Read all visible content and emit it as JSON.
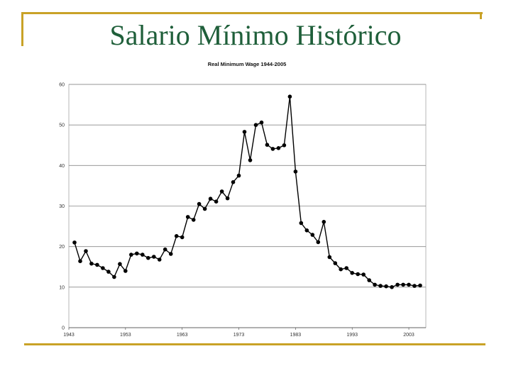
{
  "slide": {
    "title": "Salario Mínimo Histórico",
    "accent_color": "#c9a227",
    "title_color": "#1f5f3a"
  },
  "chart_data": {
    "type": "line",
    "title": "Real Minimum Wage 1944-2005",
    "xlabel": "",
    "ylabel": "",
    "xlim": [
      1943,
      2006
    ],
    "ylim": [
      0,
      60
    ],
    "x_ticks": [
      1943,
      1953,
      1963,
      1973,
      1983,
      1993,
      2003
    ],
    "y_ticks": [
      0,
      10,
      20,
      30,
      40,
      50,
      60
    ],
    "grid": "horizontal major lines",
    "legend": "none",
    "marker": "filled circle",
    "line_color": "#000000",
    "series": [
      {
        "x": [
          1944,
          1945,
          1946,
          1947,
          1948,
          1949,
          1950,
          1951,
          1952,
          1953,
          1954,
          1955,
          1956,
          1957,
          1958,
          1959,
          1960,
          1961,
          1962,
          1963,
          1964,
          1965,
          1966,
          1967,
          1968,
          1969,
          1970,
          1971,
          1972,
          1973,
          1974,
          1975,
          1976,
          1977,
          1978,
          1979,
          1980,
          1981,
          1982,
          1983,
          1984,
          1985,
          1986,
          1987,
          1988,
          1989,
          1990,
          1991,
          1992,
          1993,
          1994,
          1995,
          1996,
          1997,
          1998,
          1999,
          2000,
          2001,
          2002,
          2003,
          2004,
          2005
        ],
        "values": [
          21.0,
          16.4,
          18.9,
          15.8,
          15.5,
          14.7,
          13.8,
          12.5,
          15.7,
          14.0,
          18.0,
          18.3,
          18.0,
          17.2,
          17.5,
          16.8,
          19.3,
          18.2,
          22.6,
          22.3,
          27.3,
          26.6,
          30.5,
          29.3,
          31.8,
          31.1,
          33.6,
          31.9,
          35.9,
          37.5,
          48.3,
          41.3,
          50.0,
          50.6,
          45.1,
          44.1,
          44.3,
          45.0,
          57.0,
          38.5,
          25.8,
          24.0,
          22.9,
          21.1,
          26.1,
          17.4,
          15.9,
          14.4,
          14.7,
          13.5,
          13.2,
          13.1,
          11.7,
          10.6,
          10.3,
          10.2,
          10.0,
          10.6,
          10.6,
          10.6,
          10.3,
          10.4
        ]
      }
    ]
  }
}
